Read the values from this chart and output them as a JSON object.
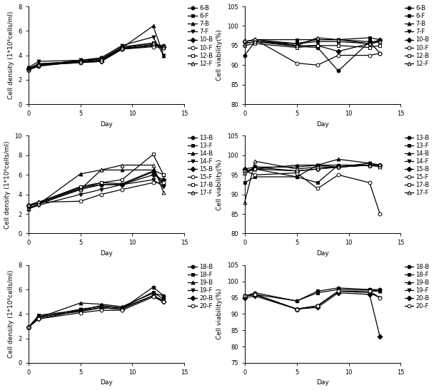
{
  "row1_density": {
    "days": [
      0,
      1,
      5,
      7,
      9,
      12,
      13
    ],
    "series": {
      "6-B": [
        2.8,
        3.1,
        3.5,
        3.5,
        4.5,
        4.8,
        4.8
      ],
      "6-F": [
        2.9,
        3.2,
        3.6,
        3.7,
        4.7,
        5.0,
        4.7
      ],
      "7-B": [
        2.9,
        3.3,
        3.5,
        3.6,
        4.6,
        6.4,
        4.0
      ],
      "7-F": [
        3.0,
        3.5,
        3.6,
        3.8,
        4.8,
        5.5,
        4.0
      ],
      "10-B": [
        2.9,
        3.3,
        3.5,
        3.5,
        4.6,
        4.8,
        4.7
      ],
      "10-F": [
        2.8,
        3.2,
        3.4,
        3.5,
        4.5,
        4.7,
        4.6
      ],
      "12-B": [
        2.8,
        3.2,
        3.4,
        3.5,
        4.5,
        4.9,
        4.7
      ],
      "12-F": [
        2.8,
        3.2,
        3.5,
        3.7,
        4.6,
        5.0,
        4.6
      ]
    },
    "ylim": [
      0,
      8
    ],
    "yticks": [
      0,
      2,
      4,
      6,
      8
    ],
    "ylabel": "Cell density (1*10⁶cells/ml)"
  },
  "row1_viability": {
    "days": [
      0,
      1,
      5,
      7,
      9,
      12,
      13
    ],
    "series": {
      "6-B": [
        92.5,
        96.0,
        94.8,
        94.5,
        88.5,
        96.0,
        93.0
      ],
      "6-F": [
        96.0,
        96.5,
        96.5,
        96.5,
        96.5,
        97.0,
        96.5
      ],
      "7-B": [
        96.0,
        96.5,
        95.5,
        96.0,
        96.0,
        95.5,
        96.0
      ],
      "7-F": [
        95.5,
        96.0,
        95.5,
        96.5,
        96.5,
        96.0,
        96.0
      ],
      "10-B": [
        96.0,
        96.5,
        95.0,
        95.0,
        93.5,
        95.5,
        96.5
      ],
      "10-F": [
        96.0,
        96.5,
        90.5,
        90.0,
        92.5,
        92.5,
        93.0
      ],
      "12-B": [
        95.0,
        95.5,
        94.5,
        95.0,
        95.0,
        94.5,
        95.0
      ],
      "12-F": [
        95.5,
        96.0,
        95.0,
        97.0,
        96.5,
        95.5,
        96.0
      ]
    },
    "ylim": [
      80,
      105
    ],
    "yticks": [
      80,
      85,
      90,
      95,
      100,
      105
    ],
    "ylabel": "Cell viability(%)"
  },
  "row2_density": {
    "days": [
      0,
      1,
      5,
      7,
      9,
      12,
      13
    ],
    "series": {
      "13-B": [
        2.8,
        3.1,
        4.5,
        5.0,
        5.0,
        6.3,
        5.0
      ],
      "13-F": [
        2.8,
        3.2,
        4.6,
        5.2,
        5.1,
        6.4,
        5.1
      ],
      "14-B": [
        2.5,
        3.0,
        6.1,
        6.5,
        6.5,
        6.5,
        6.0
      ],
      "14-F": [
        2.5,
        2.9,
        4.0,
        4.5,
        5.0,
        5.5,
        4.8
      ],
      "15-B": [
        2.9,
        3.2,
        4.7,
        5.0,
        5.0,
        6.0,
        5.5
      ],
      "15-F": [
        2.9,
        3.2,
        3.3,
        4.0,
        4.5,
        5.2,
        5.2
      ],
      "17-B": [
        2.9,
        3.2,
        4.8,
        5.2,
        5.5,
        8.1,
        6.0
      ],
      "17-F": [
        2.6,
        3.0,
        4.5,
        6.5,
        7.0,
        7.0,
        4.2
      ]
    },
    "ylim": [
      0,
      10
    ],
    "yticks": [
      0,
      2,
      4,
      6,
      8,
      10
    ],
    "ylabel": "Cell density (1*10⁶cells/ml)"
  },
  "row2_viability": {
    "days": [
      0,
      1,
      5,
      7,
      9,
      12,
      13
    ],
    "series": {
      "13-B": [
        96.0,
        96.5,
        94.5,
        97.5,
        97.5,
        97.5,
        97.5
      ],
      "13-F": [
        93.0,
        94.5,
        94.5,
        93.0,
        97.5,
        97.5,
        97.5
      ],
      "14-B": [
        96.0,
        96.5,
        97.5,
        97.5,
        99.0,
        98.0,
        97.5
      ],
      "14-F": [
        95.5,
        97.0,
        97.0,
        97.5,
        97.0,
        98.0,
        97.5
      ],
      "15-B": [
        96.5,
        97.0,
        96.0,
        96.5,
        97.0,
        97.5,
        97.5
      ],
      "15-F": [
        96.0,
        95.0,
        95.5,
        91.5,
        95.0,
        93.0,
        85.0
      ],
      "17-B": [
        95.5,
        96.5,
        96.0,
        96.5,
        97.0,
        97.5,
        97.5
      ],
      "17-F": [
        88.0,
        98.5,
        96.5,
        97.0,
        97.0,
        97.5,
        97.0
      ]
    },
    "ylim": [
      80,
      105
    ],
    "yticks": [
      80,
      85,
      90,
      95,
      100,
      105
    ],
    "ylabel": "Cell viability(%)"
  },
  "row3_density": {
    "days": [
      0,
      1,
      5,
      7,
      9,
      12,
      13
    ],
    "series": {
      "18-B": [
        2.9,
        3.8,
        4.2,
        4.5,
        4.4,
        6.2,
        5.5
      ],
      "18-F": [
        2.9,
        3.9,
        4.3,
        4.7,
        4.5,
        5.8,
        5.2
      ],
      "19-B": [
        2.9,
        3.7,
        4.9,
        4.8,
        4.6,
        5.7,
        5.5
      ],
      "19-F": [
        2.9,
        3.7,
        4.4,
        4.6,
        4.5,
        5.5,
        5.1
      ],
      "20-B": [
        2.9,
        3.6,
        4.3,
        4.5,
        4.4,
        5.5,
        5.0
      ],
      "20-F": [
        2.9,
        3.6,
        4.1,
        4.3,
        4.3,
        5.4,
        5.0
      ]
    },
    "ylim": [
      0,
      8
    ],
    "yticks": [
      0,
      2,
      4,
      6,
      8
    ],
    "ylabel": "Cell density (1*10⁶cells/ml)"
  },
  "row3_viability": {
    "days": [
      0,
      1,
      5,
      7,
      9,
      12,
      13
    ],
    "series": {
      "18-B": [
        95.5,
        96.5,
        94.0,
        97.0,
        98.0,
        97.5,
        97.5
      ],
      "18-F": [
        95.5,
        96.0,
        94.0,
        96.5,
        97.5,
        97.5,
        97.0
      ],
      "19-B": [
        95.5,
        96.0,
        91.5,
        92.5,
        97.0,
        97.0,
        97.0
      ],
      "19-F": [
        95.5,
        96.0,
        91.5,
        92.5,
        97.0,
        96.5,
        95.0
      ],
      "20-B": [
        95.0,
        95.5,
        91.5,
        92.0,
        96.5,
        96.0,
        83.0
      ],
      "20-F": [
        95.5,
        96.0,
        91.5,
        92.5,
        97.0,
        97.0,
        95.0
      ]
    },
    "ylim": [
      75,
      105
    ],
    "yticks": [
      75,
      80,
      85,
      90,
      95,
      100,
      105
    ],
    "ylabel": "Cell viability(%)"
  },
  "marker_styles_row1": {
    "6-B": {
      "marker": "o",
      "ms": 3.5,
      "mfc": "black"
    },
    "6-F": {
      "marker": "s",
      "ms": 3.5,
      "mfc": "black"
    },
    "7-B": {
      "marker": "^",
      "ms": 3.5,
      "mfc": "black"
    },
    "7-F": {
      "marker": "v",
      "ms": 3.5,
      "mfc": "black"
    },
    "10-B": {
      "marker": "D",
      "ms": 3.5,
      "mfc": "black"
    },
    "10-F": {
      "marker": "o",
      "ms": 3.5,
      "mfc": "white"
    },
    "12-B": {
      "marker": "s",
      "ms": 3.5,
      "mfc": "white"
    },
    "12-F": {
      "marker": "^",
      "ms": 3.5,
      "mfc": "white"
    }
  },
  "marker_styles_row2": {
    "13-B": {
      "marker": "o",
      "ms": 3.5,
      "mfc": "black"
    },
    "13-F": {
      "marker": "s",
      "ms": 3.5,
      "mfc": "black"
    },
    "14-B": {
      "marker": "^",
      "ms": 3.5,
      "mfc": "black"
    },
    "14-F": {
      "marker": "v",
      "ms": 3.5,
      "mfc": "black"
    },
    "15-B": {
      "marker": "D",
      "ms": 3.5,
      "mfc": "black"
    },
    "15-F": {
      "marker": "o",
      "ms": 3.5,
      "mfc": "white"
    },
    "17-B": {
      "marker": "s",
      "ms": 3.5,
      "mfc": "white"
    },
    "17-F": {
      "marker": "^",
      "ms": 3.5,
      "mfc": "white"
    }
  },
  "marker_styles_row3": {
    "18-B": {
      "marker": "o",
      "ms": 3.5,
      "mfc": "black"
    },
    "18-F": {
      "marker": "s",
      "ms": 3.5,
      "mfc": "black"
    },
    "19-B": {
      "marker": "^",
      "ms": 3.5,
      "mfc": "black"
    },
    "19-F": {
      "marker": "v",
      "ms": 3.5,
      "mfc": "black"
    },
    "20-B": {
      "marker": "D",
      "ms": 3.5,
      "mfc": "black"
    },
    "20-F": {
      "marker": "o",
      "ms": 3.5,
      "mfc": "white"
    }
  },
  "xlabel": "Day",
  "xlim": [
    0,
    15
  ],
  "xticks": [
    0,
    5,
    10,
    15
  ],
  "line_color": "black",
  "linewidth": 0.9,
  "fontsize": 6.5,
  "tick_fontsize": 6
}
